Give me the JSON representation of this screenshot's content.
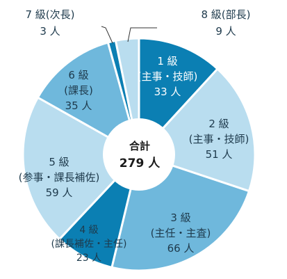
{
  "chart_data": {
    "type": "pie",
    "donut": true,
    "total": {
      "label": "合計",
      "value_text": "279 人"
    },
    "slices": [
      {
        "grade": "1 級",
        "role": "(主事・技師)",
        "count_text": "33 人",
        "value": 33,
        "color": "#0b7fb3",
        "text_color": "#ffffff"
      },
      {
        "grade": "2 級",
        "role": "(主事・技師)",
        "count_text": "51 人",
        "value": 51,
        "color": "#b9ddef",
        "text_color": "#1e3a4c"
      },
      {
        "grade": "3 級",
        "role": "(主任・主査)",
        "count_text": "66 人",
        "value": 66,
        "color": "#6fb8dc",
        "text_color": "#1e3a4c"
      },
      {
        "grade": "4 級",
        "role": "(課長補佐・主任)",
        "count_text": "23 人",
        "value": 23,
        "color": "#0b7fb3",
        "text_color": "#1e3a4c"
      },
      {
        "grade": "5 級",
        "role": "(参事・課長補佐)",
        "count_text": "59 人",
        "value": 59,
        "color": "#b9ddef",
        "text_color": "#1e3a4c"
      },
      {
        "grade": "6 級",
        "role": "(課長)",
        "count_text": "35 人",
        "value": 35,
        "color": "#6fb8dc",
        "text_color": "#1e3a4c"
      },
      {
        "grade": "7 級",
        "role": "(次長)",
        "count_text": "3 人",
        "value": 3,
        "color": "#0b7fb3",
        "text_color": "#1e3a4c"
      },
      {
        "grade": "8 級",
        "role": "(部長)",
        "count_text": "9 人",
        "value": 9,
        "color": "#b9ddef",
        "text_color": "#1e3a4c"
      }
    ],
    "external_labels": [
      {
        "grade": "7 級",
        "role": "(次長)",
        "count_text": "3 人"
      },
      {
        "grade": "8 級",
        "role": "(部長)",
        "count_text": "9 人"
      }
    ]
  }
}
